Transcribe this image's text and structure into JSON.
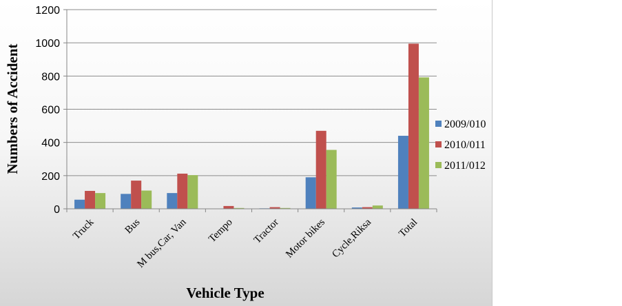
{
  "chart_data": {
    "type": "bar",
    "categories": [
      "Truck",
      "Bus",
      "M bus,Car, Van",
      "Tempo",
      "Tractor",
      "Motor bikes",
      "Cycle,Riksa",
      "Total"
    ],
    "series": [
      {
        "name": "2009/010",
        "color": "#4f81bd",
        "values": [
          55,
          90,
          95,
          2,
          3,
          190,
          8,
          440
        ]
      },
      {
        "name": "2010/011",
        "color": "#c0504d",
        "values": [
          108,
          170,
          212,
          17,
          10,
          470,
          10,
          995
        ]
      },
      {
        "name": "2011/012",
        "color": "#9bbb59",
        "values": [
          95,
          110,
          203,
          5,
          5,
          355,
          20,
          792
        ]
      }
    ],
    "xlabel": "Vehicle Type",
    "ylabel": "Numbers of Accident",
    "ylim": [
      0,
      1200
    ],
    "yticks": [
      0,
      200,
      400,
      600,
      800,
      1000,
      1200
    ],
    "grid": true,
    "legend": "right"
  }
}
